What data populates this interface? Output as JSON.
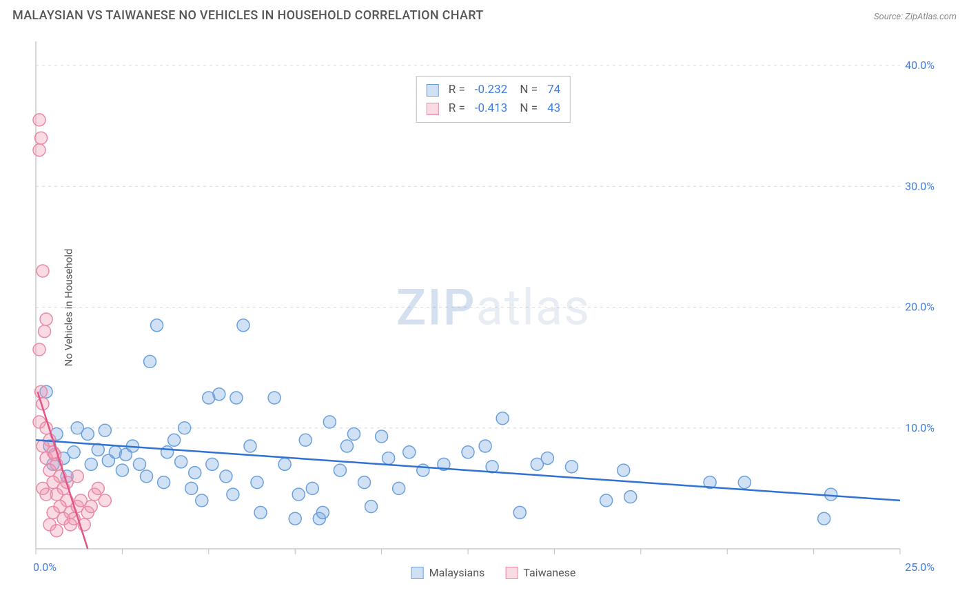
{
  "title": "MALAYSIAN VS TAIWANESE NO VEHICLES IN HOUSEHOLD CORRELATION CHART",
  "source": "Source: ZipAtlas.com",
  "ylabel": "No Vehicles in Household",
  "watermark": {
    "part1": "ZIP",
    "part2": "atlas"
  },
  "chart": {
    "type": "scatter",
    "xlim": [
      0,
      25
    ],
    "ylim": [
      0,
      42
    ],
    "x_ticks": [
      0,
      2.5,
      5,
      7.5,
      10,
      12.5,
      15,
      17.5,
      20,
      22.5,
      25
    ],
    "x_tick_labels": {
      "0": "0.0%",
      "25": "25.0%"
    },
    "y_ticks": [
      10,
      20,
      30,
      40
    ],
    "y_tick_labels": {
      "10": "10.0%",
      "20": "20.0%",
      "30": "30.0%",
      "40": "40.0%"
    },
    "grid_color": "#d9d9d9",
    "axis_color": "#bfbfbf",
    "tick_label_color": "#3f7fe0",
    "background_color": "#ffffff",
    "marker_radius": 9,
    "marker_stroke_width": 1.5,
    "colors": {
      "malaysians_fill": "rgba(120,170,230,0.35)",
      "malaysians_stroke": "#6aa0dc",
      "taiwanese_fill": "rgba(240,150,175,0.35)",
      "taiwanese_stroke": "#e88aa5",
      "trend_blue": "#2f72d4",
      "trend_pink": "#e35586"
    },
    "series": [
      {
        "name": "Malaysians",
        "r": "-0.232",
        "n": "74",
        "points": [
          [
            0.3,
            13.0
          ],
          [
            0.4,
            8.5
          ],
          [
            0.5,
            7.0
          ],
          [
            0.6,
            9.5
          ],
          [
            0.8,
            7.5
          ],
          [
            0.9,
            6.0
          ],
          [
            1.1,
            8.0
          ],
          [
            1.2,
            10.0
          ],
          [
            1.5,
            9.5
          ],
          [
            1.6,
            7.0
          ],
          [
            1.8,
            8.2
          ],
          [
            2.0,
            9.8
          ],
          [
            2.1,
            7.3
          ],
          [
            2.3,
            8.0
          ],
          [
            2.5,
            6.5
          ],
          [
            2.6,
            7.8
          ],
          [
            2.8,
            8.5
          ],
          [
            3.0,
            7.0
          ],
          [
            3.2,
            6.0
          ],
          [
            3.3,
            15.5
          ],
          [
            3.5,
            18.5
          ],
          [
            3.7,
            5.5
          ],
          [
            3.8,
            8.0
          ],
          [
            4.0,
            9.0
          ],
          [
            4.2,
            7.2
          ],
          [
            4.3,
            10.0
          ],
          [
            4.5,
            5.0
          ],
          [
            4.6,
            6.3
          ],
          [
            4.8,
            4.0
          ],
          [
            5.0,
            12.5
          ],
          [
            5.1,
            7.0
          ],
          [
            5.3,
            12.8
          ],
          [
            5.5,
            6.0
          ],
          [
            5.7,
            4.5
          ],
          [
            6.0,
            18.5
          ],
          [
            5.8,
            12.5
          ],
          [
            6.2,
            8.5
          ],
          [
            6.4,
            5.5
          ],
          [
            6.5,
            3.0
          ],
          [
            6.9,
            12.5
          ],
          [
            7.2,
            7.0
          ],
          [
            7.5,
            2.5
          ],
          [
            7.6,
            4.5
          ],
          [
            7.8,
            9.0
          ],
          [
            8.0,
            5.0
          ],
          [
            8.2,
            2.5
          ],
          [
            8.3,
            3.0
          ],
          [
            8.5,
            10.5
          ],
          [
            8.8,
            6.5
          ],
          [
            9.0,
            8.5
          ],
          [
            9.2,
            9.5
          ],
          [
            9.5,
            5.5
          ],
          [
            9.7,
            3.5
          ],
          [
            10.0,
            9.3
          ],
          [
            10.2,
            7.5
          ],
          [
            10.5,
            5.0
          ],
          [
            10.8,
            8.0
          ],
          [
            11.2,
            6.5
          ],
          [
            11.8,
            7.0
          ],
          [
            12.5,
            8.0
          ],
          [
            13.0,
            8.5
          ],
          [
            13.2,
            6.8
          ],
          [
            13.5,
            10.8
          ],
          [
            14.0,
            3.0
          ],
          [
            14.5,
            7.0
          ],
          [
            15.5,
            6.8
          ],
          [
            16.5,
            4.0
          ],
          [
            17.0,
            6.5
          ],
          [
            17.2,
            4.3
          ],
          [
            19.5,
            5.5
          ],
          [
            20.5,
            5.5
          ],
          [
            22.8,
            2.5
          ],
          [
            23.0,
            4.5
          ],
          [
            14.8,
            7.5
          ]
        ],
        "trend": {
          "x1": 0,
          "y1": 9.0,
          "x2": 25,
          "y2": 4.0,
          "width": 2.5
        }
      },
      {
        "name": "Taiwanese",
        "r": "-0.413",
        "n": "43",
        "points": [
          [
            0.1,
            35.5
          ],
          [
            0.15,
            34.0
          ],
          [
            0.1,
            33.0
          ],
          [
            0.2,
            23.0
          ],
          [
            0.3,
            19.0
          ],
          [
            0.25,
            18.0
          ],
          [
            0.1,
            16.5
          ],
          [
            0.15,
            13.0
          ],
          [
            0.2,
            12.0
          ],
          [
            0.1,
            10.5
          ],
          [
            0.3,
            10.0
          ],
          [
            0.4,
            9.0
          ],
          [
            0.2,
            8.5
          ],
          [
            0.5,
            8.0
          ],
          [
            0.3,
            7.5
          ],
          [
            0.6,
            7.0
          ],
          [
            0.4,
            6.5
          ],
          [
            0.7,
            6.0
          ],
          [
            0.5,
            5.5
          ],
          [
            0.8,
            5.0
          ],
          [
            0.6,
            4.5
          ],
          [
            0.9,
            4.0
          ],
          [
            0.7,
            3.5
          ],
          [
            1.0,
            3.0
          ],
          [
            0.8,
            2.5
          ],
          [
            1.1,
            2.5
          ],
          [
            0.4,
            2.0
          ],
          [
            1.2,
            3.5
          ],
          [
            0.5,
            3.0
          ],
          [
            1.3,
            4.0
          ],
          [
            0.6,
            1.5
          ],
          [
            1.4,
            2.0
          ],
          [
            0.3,
            4.5
          ],
          [
            1.5,
            3.0
          ],
          [
            0.2,
            5.0
          ],
          [
            1.6,
            3.5
          ],
          [
            1.0,
            2.0
          ],
          [
            1.7,
            4.5
          ],
          [
            0.9,
            5.5
          ],
          [
            1.8,
            5.0
          ],
          [
            1.2,
            6.0
          ],
          [
            2.0,
            4.0
          ],
          [
            0.55,
            7.8
          ]
        ],
        "trend": {
          "x1": 0.05,
          "y1": 13.0,
          "x2": 1.5,
          "y2": 0,
          "width": 2.5
        }
      }
    ]
  },
  "legend": {
    "items": [
      {
        "label": "Malaysians"
      },
      {
        "label": "Taiwanese"
      }
    ]
  }
}
